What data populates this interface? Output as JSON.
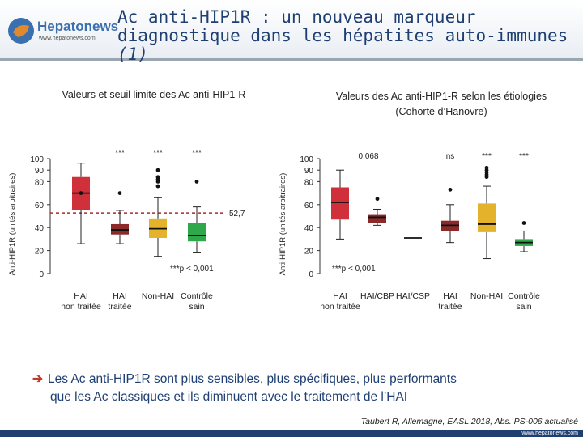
{
  "header": {
    "logo_name": "Hepatonews",
    "logo_url": "www.hepatonews.com",
    "title_line1": "Ac anti-HIP1R : un nouveau marqueur",
    "title_line2": "diagnostique dans les hépatites auto-immunes",
    "title_ref": "(1)"
  },
  "conclusion": {
    "line1": "Les Ac anti-HIP1R sont plus sensibles, plus spécifiques, plus performants",
    "line2": "que les Ac classiques et ils diminuent avec le traitement de l’HAI"
  },
  "citation": "Taubert R, Allemagne, EASL 2018, Abs. PS-006 actualisé",
  "footer_url": "www.hepatonews.com",
  "chart_data": [
    {
      "type": "box",
      "title": "Valeurs et seuil limite  des Ac anti-HIP1-R",
      "ylabel": "Anti-HIP1R (unités arbitraires)",
      "ylim": [
        0,
        100
      ],
      "yticks": [
        "0",
        "20",
        "40",
        "60",
        "80",
        "90",
        "100"
      ],
      "threshold": {
        "value": 52.7,
        "label": "52,7"
      },
      "pvalue_note": "***p < 0,001",
      "categories": [
        {
          "label1": "HAI",
          "label2": "non traitée",
          "color": "#d0303a",
          "median": 70,
          "q1": 55,
          "q3": 84,
          "whisker_low": 26,
          "whisker_high": 96,
          "outliers": [
            70
          ],
          "sig": ""
        },
        {
          "label1": "HAI",
          "label2": "traitée",
          "color": "#8c2a2a",
          "median": 38,
          "q1": 34,
          "q3": 43,
          "whisker_low": 26,
          "whisker_high": 55,
          "outliers": [
            70
          ],
          "sig": "***"
        },
        {
          "label1": "Non-HAI",
          "label2": "",
          "color": "#e5b22b",
          "median": 39,
          "q1": 31,
          "q3": 48,
          "whisker_low": 15,
          "whisker_high": 66,
          "outliers": [
            76,
            80,
            82,
            84,
            90
          ],
          "sig": "***"
        },
        {
          "label1": "Contrôle",
          "label2": "sain",
          "color": "#2ea84a",
          "median": 33,
          "q1": 28,
          "q3": 44,
          "whisker_low": 18,
          "whisker_high": 58,
          "outliers": [
            80
          ],
          "sig": "***"
        }
      ]
    },
    {
      "type": "box",
      "title_line1": "Valeurs des Ac anti-HIP1-R selon les étiologies",
      "title_line2": "(Cohorte d’Hanovre)",
      "ylabel": "Anti-HIP1R (unités arbitraires)",
      "ylim": [
        0,
        100
      ],
      "yticks": [
        "0",
        "20",
        "40",
        "60",
        "80",
        "90",
        "100"
      ],
      "pvalue_note": "***p < 0,001",
      "categories": [
        {
          "label1": "HAI",
          "label2": "non traitée",
          "color": "#d0303a",
          "median": 62,
          "q1": 47,
          "q3": 75,
          "whisker_low": 30,
          "whisker_high": 90,
          "outliers": [],
          "sig": "0,068"
        },
        {
          "label1": "HAI/CBP",
          "label2": "",
          "color": "#8c2a2a",
          "median": 49,
          "q1": 44,
          "q3": 51,
          "whisker_low": 42,
          "whisker_high": 56,
          "outliers": [
            65
          ],
          "sig": ""
        },
        {
          "label1": "HAI/CSP",
          "label2": "",
          "color": "#555555",
          "median": 31,
          "q1": 31,
          "q3": 31,
          "whisker_low": 31,
          "whisker_high": 31,
          "outliers": [],
          "sig": ""
        },
        {
          "label1": "HAI",
          "label2": "traitée",
          "color": "#8c2a2a",
          "median": 42,
          "q1": 37,
          "q3": 46,
          "whisker_low": 27,
          "whisker_high": 60,
          "outliers": [
            73
          ],
          "sig": "ns"
        },
        {
          "label1": "Non-HAI",
          "label2": "",
          "color": "#e5b22b",
          "median": 43,
          "q1": 36,
          "q3": 61,
          "whisker_low": 13,
          "whisker_high": 76,
          "outliers": [
            84,
            86,
            88,
            90,
            92
          ],
          "sig": "***"
        },
        {
          "label1": "Contrôle",
          "label2": "sain",
          "color": "#2ea84a",
          "median": 27,
          "q1": 24,
          "q3": 30,
          "whisker_low": 19,
          "whisker_high": 37,
          "outliers": [
            44
          ],
          "sig": "***"
        }
      ]
    }
  ]
}
